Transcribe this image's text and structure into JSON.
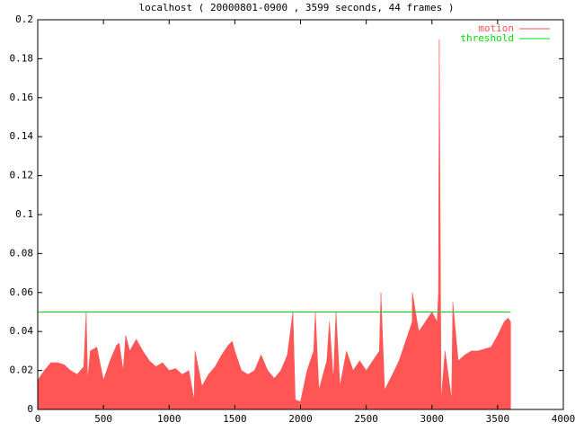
{
  "chart_data": {
    "type": "area",
    "title": "localhost ( 20000801-0900 , 3599 seconds, 44 frames )",
    "series": [
      {
        "name": "motion",
        "color": "#ff5555",
        "x": [
          0,
          50,
          100,
          150,
          200,
          250,
          300,
          350,
          369,
          380,
          400,
          450,
          500,
          550,
          600,
          620,
          650,
          670,
          700,
          750,
          800,
          850,
          900,
          950,
          1000,
          1050,
          1100,
          1150,
          1190,
          1197,
          1250,
          1300,
          1350,
          1400,
          1450,
          1480,
          1500,
          1550,
          1600,
          1650,
          1700,
          1750,
          1800,
          1850,
          1900,
          1942,
          1960,
          2000,
          2050,
          2100,
          2113,
          2140,
          2200,
          2220,
          2250,
          2270,
          2300,
          2350,
          2400,
          2450,
          2500,
          2550,
          2600,
          2612,
          2640,
          2700,
          2750,
          2800,
          2850,
          2851,
          2900,
          2950,
          3000,
          3040,
          3050,
          3056,
          3070,
          3100,
          3150,
          3159,
          3200,
          3250,
          3300,
          3350,
          3400,
          3450,
          3500,
          3550,
          3580,
          3599
        ],
        "values": [
          0.015,
          0.02,
          0.024,
          0.024,
          0.023,
          0.02,
          0.018,
          0.022,
          0.05,
          0.015,
          0.03,
          0.032,
          0.015,
          0.025,
          0.033,
          0.034,
          0.02,
          0.038,
          0.03,
          0.036,
          0.03,
          0.025,
          0.022,
          0.024,
          0.02,
          0.021,
          0.018,
          0.02,
          0.005,
          0.03,
          0.012,
          0.018,
          0.022,
          0.028,
          0.033,
          0.035,
          0.03,
          0.02,
          0.018,
          0.02,
          0.028,
          0.02,
          0.016,
          0.02,
          0.028,
          0.05,
          0.005,
          0.004,
          0.02,
          0.03,
          0.05,
          0.01,
          0.025,
          0.045,
          0.015,
          0.05,
          0.012,
          0.03,
          0.02,
          0.025,
          0.02,
          0.025,
          0.03,
          0.06,
          0.01,
          0.018,
          0.025,
          0.035,
          0.045,
          0.06,
          0.04,
          0.045,
          0.05,
          0.045,
          0.06,
          0.19,
          0.005,
          0.03,
          0.005,
          0.055,
          0.025,
          0.028,
          0.03,
          0.03,
          0.031,
          0.032,
          0.038,
          0.045,
          0.047,
          0.045
        ]
      },
      {
        "name": "threshold",
        "color": "#00dd00",
        "x": [
          0,
          3599
        ],
        "values": [
          0.05,
          0.05
        ]
      }
    ],
    "xlim": [
      0,
      4000
    ],
    "xticks": [
      0,
      500,
      1000,
      1500,
      2000,
      2500,
      3000,
      3500,
      4000
    ],
    "ylim": [
      0,
      0.2
    ],
    "yticks": [
      0,
      0.02,
      0.04,
      0.06,
      0.08,
      0.1,
      0.12,
      0.14,
      0.16,
      0.18,
      0.2
    ],
    "legend": "top-right"
  }
}
